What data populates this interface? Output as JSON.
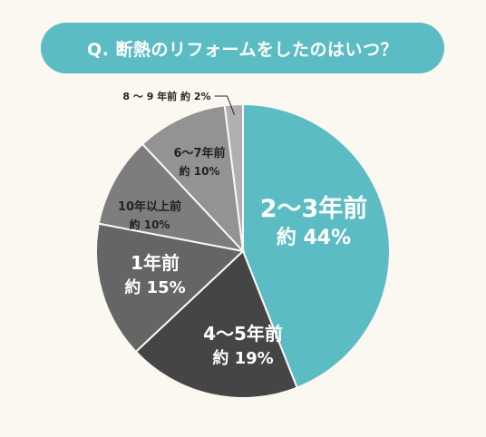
{
  "question": "Q. 断熱のリフォームをしたのはいつ？",
  "colors": {
    "banner": "#5bbcc4",
    "background": "#fbf8f1",
    "label_light": "#ffffff",
    "label_dark": "#222222"
  },
  "chart_data": {
    "type": "pie",
    "title": "Q. 断熱のリフォームをしたのはいつ？",
    "start_angle_deg": 0,
    "direction": "clockwise",
    "slices": [
      {
        "name": "2〜3年前",
        "value": 44,
        "value_label": "約 44%",
        "color": "#5bbcc4"
      },
      {
        "name": "4〜5年前",
        "value": 19,
        "value_label": "約 19%",
        "color": "#454545"
      },
      {
        "name": "1年前",
        "value": 15,
        "value_label": "約 15%",
        "color": "#656565"
      },
      {
        "name": "10年以上前",
        "value": 10,
        "value_label": "約 10%",
        "color": "#7d7d7d"
      },
      {
        "name": "6〜7年前",
        "value": 10,
        "value_label": "約 10%",
        "color": "#939393"
      },
      {
        "name": "8 〜 9 年前",
        "value": 2,
        "value_label": "約 2%",
        "color": "#b0b0b0"
      }
    ]
  }
}
